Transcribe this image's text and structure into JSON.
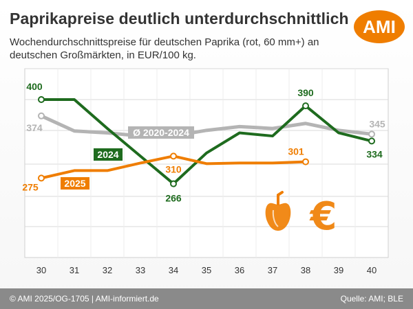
{
  "header": {
    "title": "Paprikapreise deutlich unterdurchschnittlich",
    "subtitle": "Wochendurchschnittspreise für deutschen Paprika (rot, 60 mm+) an deutschen Großmärkten, in EUR/100 kg.",
    "logo": "AMI"
  },
  "footer": {
    "copyright": "© AMI 2025/OG-1705 | AMI-informiert.de",
    "source": "Quelle: AMI; BLE"
  },
  "icons": [
    "paprika-icon",
    "euro-icon"
  ],
  "colors": {
    "avg": "#b4b4b4",
    "y2024": "#1e6b1e",
    "y2025": "#ef7d00",
    "accent": "#ef7d00"
  },
  "chart_data": {
    "type": "line",
    "x": [
      30,
      31,
      32,
      33,
      34,
      35,
      36,
      37,
      38,
      39,
      40
    ],
    "ylim": [
      200,
      420
    ],
    "grid": true,
    "series": [
      {
        "name": "Ø 2020-2024",
        "color": "#b4b4b4",
        "values": [
          374,
          350,
          347,
          342,
          342,
          351,
          357,
          354,
          362,
          351,
          345
        ]
      },
      {
        "name": "2024",
        "color": "#1e6b1e",
        "values": [
          400,
          400,
          354,
          310,
          266,
          315,
          347,
          342,
          390,
          347,
          334
        ]
      },
      {
        "name": "2025",
        "color": "#ef7d00",
        "values": [
          275,
          287,
          287,
          299,
          310,
          298,
          299,
          299,
          301,
          null,
          null
        ]
      }
    ],
    "data_labels": [
      {
        "series": "2024",
        "x": 30,
        "text": "400"
      },
      {
        "series": "Ø 2020-2024",
        "x": 30,
        "text": "374"
      },
      {
        "series": "2025",
        "x": 30,
        "text": "275"
      },
      {
        "series": "2024",
        "x": 34,
        "text": "266"
      },
      {
        "series": "2025",
        "x": 34,
        "text": "310"
      },
      {
        "series": "2024",
        "x": 38,
        "text": "390"
      },
      {
        "series": "2025",
        "x": 38,
        "text": "301"
      },
      {
        "series": "Ø 2020-2024",
        "x": 40,
        "text": "345"
      },
      {
        "series": "2024",
        "x": 40,
        "text": "334"
      }
    ],
    "legend_labels": [
      {
        "series": "Ø 2020-2024",
        "text": "Ø 2020-2024"
      },
      {
        "series": "2024",
        "text": "2024"
      },
      {
        "series": "2025",
        "text": "2025"
      }
    ]
  }
}
